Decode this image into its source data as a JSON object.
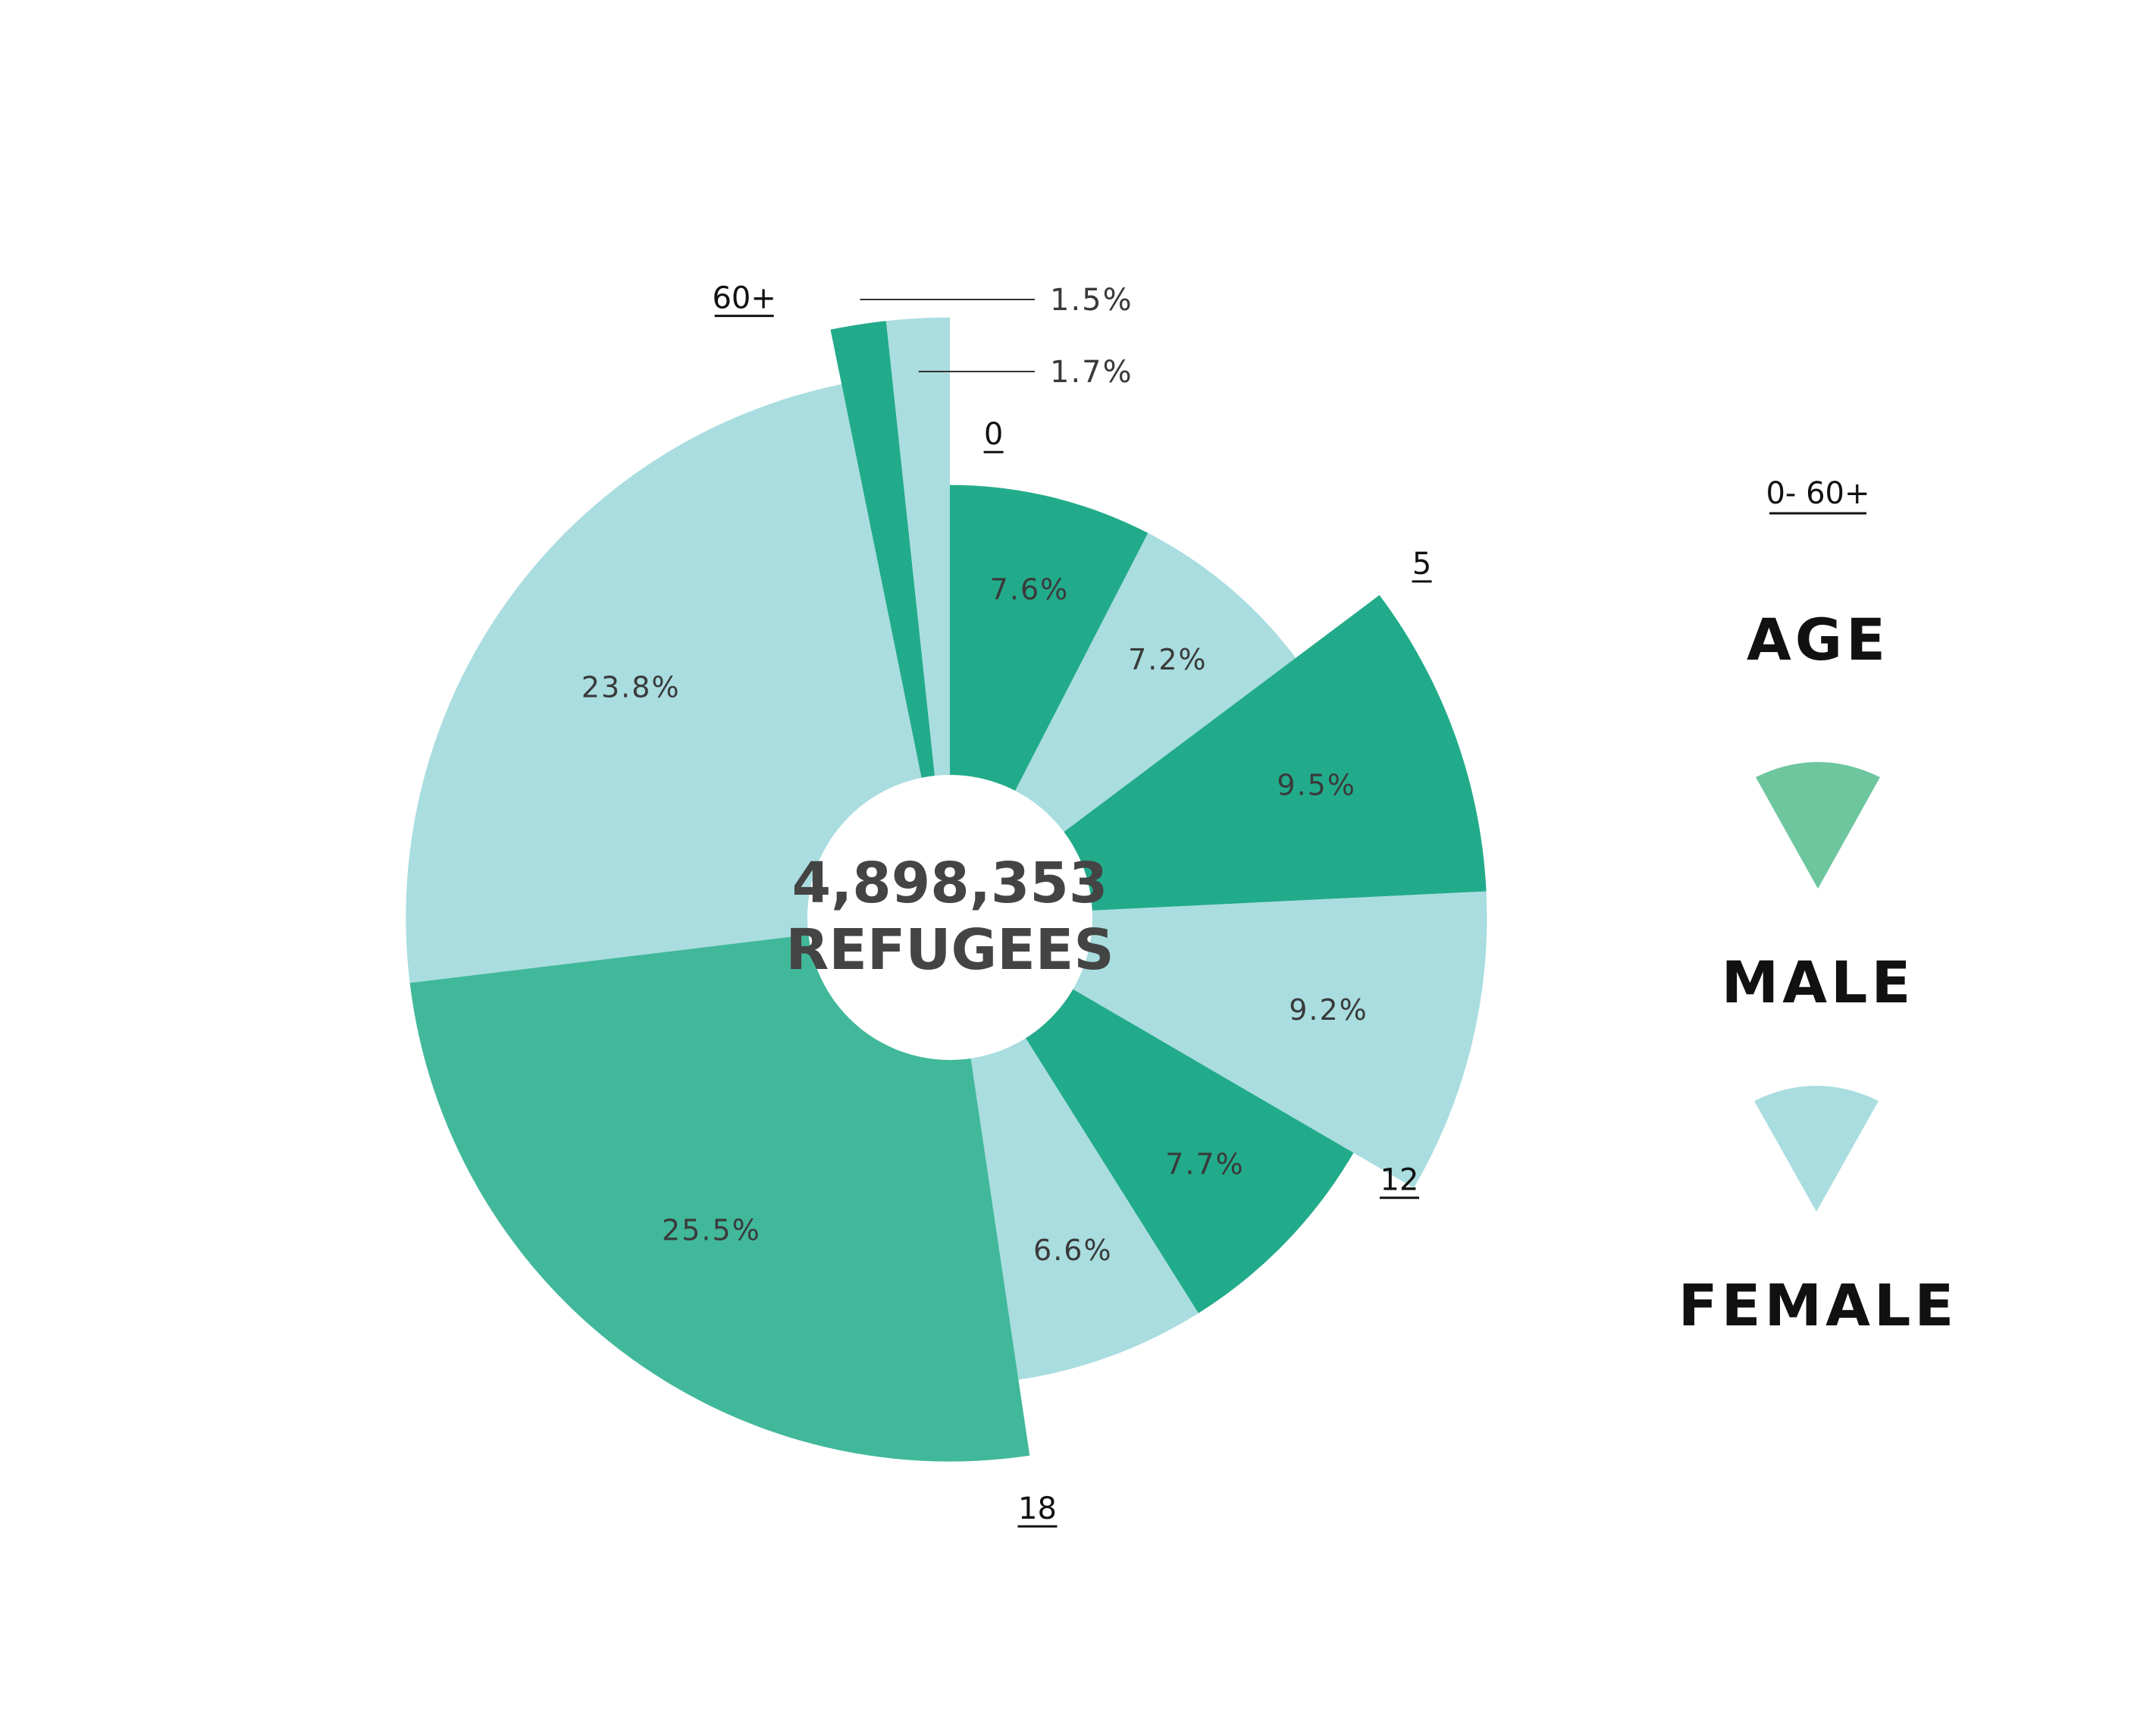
{
  "chart_data": {
    "type": "pie",
    "total": "4,898,353",
    "center_unit": "REFUGEES",
    "age_range": "0- 60+",
    "age_title": "AGE",
    "series": [
      {
        "name": "MALE",
        "color": "#22ab8a"
      },
      {
        "name": "FEMALE",
        "color": "#a9dde0"
      }
    ],
    "categories": [
      "0",
      "5",
      "12",
      "18",
      "60+"
    ],
    "slices": [
      {
        "group": "0",
        "sex": "MALE",
        "value": 7.6,
        "label": "7.6%",
        "color": "#22ab8a",
        "radius": 0.62
      },
      {
        "group": "0",
        "sex": "FEMALE",
        "value": 7.2,
        "label": "7.2%",
        "color": "#a9dde0",
        "radius": 0.62
      },
      {
        "group": "5",
        "sex": "MALE",
        "value": 9.5,
        "label": "9.5%",
        "color": "#22ab8a",
        "radius": 0.77
      },
      {
        "group": "5",
        "sex": "FEMALE",
        "value": 9.2,
        "label": "9.2%",
        "color": "#a9dde0",
        "radius": 0.77
      },
      {
        "group": "12",
        "sex": "MALE",
        "value": 7.7,
        "label": "7.7%",
        "color": "#22ab8a",
        "radius": 0.67
      },
      {
        "group": "12",
        "sex": "FEMALE",
        "value": 6.6,
        "label": "6.6%",
        "color": "#a9dde0",
        "radius": 0.67
      },
      {
        "group": "18",
        "sex": "MALE",
        "value": 25.5,
        "label": "25.5%",
        "color": "#41b89a",
        "radius": 0.78
      },
      {
        "group": "18",
        "sex": "FEMALE",
        "value": 23.8,
        "label": "23.8%",
        "color": "#a9dde0",
        "radius": 0.78
      },
      {
        "group": "60+",
        "sex": "MALE",
        "value": 1.5,
        "label": "1.5%",
        "color": "#22ab8a",
        "radius": 0.86
      },
      {
        "group": "60+",
        "sex": "FEMALE",
        "value": 1.7,
        "label": "1.7%",
        "color": "#a9dde0",
        "radius": 0.86
      }
    ],
    "legend_position": "right"
  }
}
